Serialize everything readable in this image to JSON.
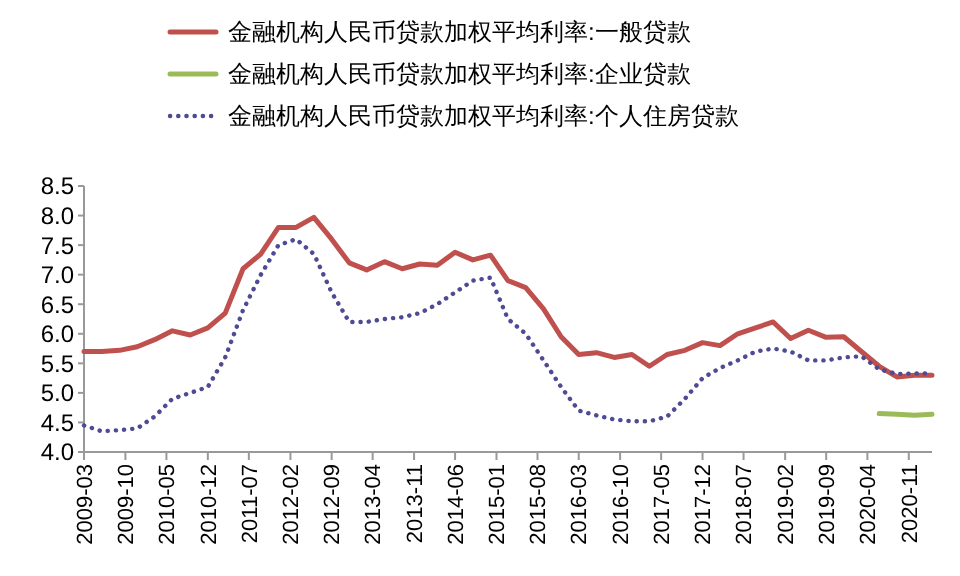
{
  "chart_data": {
    "type": "line",
    "legend": "top",
    "grid": false,
    "ylim": [
      4.0,
      8.5
    ],
    "yticks": [
      {
        "value": 4.0,
        "label": "4.0"
      },
      {
        "value": 4.5,
        "label": "4.5"
      },
      {
        "value": 5.0,
        "label": "5.0"
      },
      {
        "value": 5.5,
        "label": "5.5"
      },
      {
        "value": 6.0,
        "label": "6.0"
      },
      {
        "value": 6.5,
        "label": "6.5"
      },
      {
        "value": 7.0,
        "label": "7.0"
      },
      {
        "value": 7.5,
        "label": "7.5"
      },
      {
        "value": 8.0,
        "label": "8.0"
      },
      {
        "value": 8.5,
        "label": "8.5"
      }
    ],
    "xlim": [
      "2009-03",
      "2021-03"
    ],
    "xticks": [
      "2009-03",
      "2009-10",
      "2010-05",
      "2010-12",
      "2011-07",
      "2012-02",
      "2012-09",
      "2013-04",
      "2013-11",
      "2014-06",
      "2015-01",
      "2015-08",
      "2016-03",
      "2016-10",
      "2017-05",
      "2017-12",
      "2018-07",
      "2019-02",
      "2019-09",
      "2020-04",
      "2020-11"
    ],
    "x": [
      "2009-03",
      "2009-06",
      "2009-09",
      "2009-12",
      "2010-03",
      "2010-06",
      "2010-09",
      "2010-12",
      "2011-03",
      "2011-06",
      "2011-09",
      "2011-12",
      "2012-03",
      "2012-06",
      "2012-09",
      "2012-12",
      "2013-03",
      "2013-06",
      "2013-09",
      "2013-12",
      "2014-03",
      "2014-06",
      "2014-09",
      "2014-12",
      "2015-03",
      "2015-06",
      "2015-09",
      "2015-12",
      "2016-03",
      "2016-06",
      "2016-09",
      "2016-12",
      "2017-03",
      "2017-06",
      "2017-09",
      "2017-12",
      "2018-03",
      "2018-06",
      "2018-09",
      "2018-12",
      "2019-03",
      "2019-06",
      "2019-09",
      "2019-12",
      "2020-03",
      "2020-06",
      "2020-09",
      "2020-12",
      "2021-03"
    ],
    "series": [
      {
        "name": "金融机构人民币贷款加权平均利率:一般贷款",
        "color": "#c0504d",
        "line_style": "solid",
        "values": [
          5.7,
          5.7,
          5.72,
          5.78,
          5.9,
          6.05,
          5.98,
          6.1,
          6.35,
          7.1,
          7.35,
          7.8,
          7.8,
          7.97,
          7.6,
          7.2,
          7.08,
          7.22,
          7.1,
          7.18,
          7.16,
          7.38,
          7.25,
          7.33,
          6.9,
          6.78,
          6.42,
          5.95,
          5.65,
          5.68,
          5.6,
          5.65,
          5.45,
          5.65,
          5.72,
          5.85,
          5.8,
          6.0,
          6.1,
          6.2,
          5.92,
          6.06,
          5.94,
          5.95,
          5.7,
          5.45,
          5.27,
          5.3,
          5.3
        ]
      },
      {
        "name": "金融机构人民币贷款加权平均利率:企业贷款",
        "color": "#9bbb59",
        "line_style": "solid",
        "values": [
          null,
          null,
          null,
          null,
          null,
          null,
          null,
          null,
          null,
          null,
          null,
          null,
          null,
          null,
          null,
          null,
          null,
          null,
          null,
          null,
          null,
          null,
          null,
          null,
          null,
          null,
          null,
          null,
          null,
          null,
          null,
          null,
          null,
          null,
          null,
          null,
          null,
          null,
          null,
          null,
          null,
          null,
          null,
          null,
          null,
          4.65,
          4.64,
          4.62,
          4.64
        ]
      },
      {
        "name": "金融机构人民币贷款加权平均利率:个人住房贷款",
        "color": "#4e4a93",
        "line_style": "dotted",
        "values": [
          4.45,
          4.35,
          4.37,
          4.4,
          4.6,
          4.9,
          5.0,
          5.1,
          5.6,
          6.4,
          7.0,
          7.5,
          7.6,
          7.35,
          6.7,
          6.2,
          6.2,
          6.25,
          6.28,
          6.35,
          6.5,
          6.7,
          6.9,
          6.95,
          6.25,
          6.0,
          5.55,
          5.1,
          4.7,
          4.62,
          4.55,
          4.52,
          4.52,
          4.6,
          4.9,
          5.25,
          5.42,
          5.55,
          5.7,
          5.75,
          5.7,
          5.55,
          5.55,
          5.6,
          5.62,
          5.4,
          5.32,
          5.33,
          5.33
        ]
      }
    ]
  }
}
